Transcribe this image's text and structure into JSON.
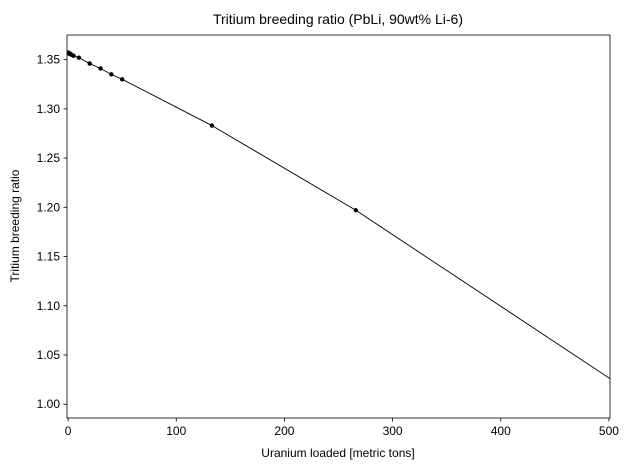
{
  "chart_data": {
    "type": "line",
    "title": "Tritium breeding ratio (PbLi, 90wt% Li-6)",
    "xlabel": "Uranium loaded [metric tons]",
    "ylabel": "Tritium breeding ratio",
    "xlim": [
      -1,
      501
    ],
    "ylim": [
      0.986,
      1.375
    ],
    "xticks": [
      0,
      100,
      200,
      300,
      400,
      500
    ],
    "yticks": [
      1.0,
      1.05,
      1.1,
      1.15,
      1.2,
      1.25,
      1.3,
      1.35
    ],
    "grid": false,
    "legend": "none",
    "line_color": "#000000",
    "series": [
      {
        "x": [
          0,
          0.5,
          1,
          2,
          3,
          5,
          10,
          20,
          30,
          40,
          50,
          133,
          266
        ],
        "y": [
          1.357,
          1.357,
          1.356,
          1.356,
          1.355,
          1.354,
          1.352,
          1.346,
          1.341,
          1.335,
          1.33,
          1.283,
          1.197
        ],
        "markers": true
      },
      {
        "x": [
          266,
          501
        ],
        "y": [
          1.197,
          1.026
        ],
        "markers": false
      }
    ]
  }
}
